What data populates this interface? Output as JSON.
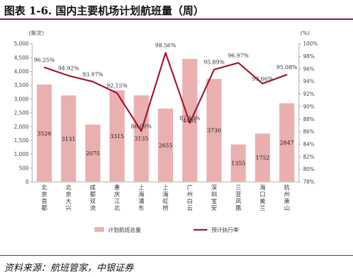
{
  "figure": {
    "title": "图表 1-6. 国内主要机场计划航班量（周）",
    "source": "资料来源：航班管家，中银证券"
  },
  "colors": {
    "bar": "#eab0b0",
    "line": "#a3122d",
    "rule": "#8b1a2e"
  },
  "chart_data": {
    "type": "bar",
    "categories": [
      "北京首都",
      "北京大兴",
      "成都双流",
      "重庆江北",
      "上海浦东",
      "上海虹桥",
      "广州白云",
      "深圳宝安",
      "三亚凤凰",
      "海口美兰",
      "杭州萧山"
    ],
    "series": [
      {
        "name": "计划航班总量",
        "type": "bar",
        "axis": "left",
        "values": [
          3526,
          3131,
          2075,
          3315,
          3135,
          2655,
          4451,
          3730,
          1355,
          1752,
          2847
        ],
        "labels": [
          "3526",
          "3131",
          "2075",
          "3315",
          "3135",
          "2655",
          "4451",
          "3730",
          "1355",
          "1752",
          "2847"
        ]
      },
      {
        "name": "预计执行率",
        "type": "line",
        "axis": "right",
        "values": [
          96.25,
          94.92,
          93.97,
          92.15,
          86.09,
          98.56,
          87.4,
          95.89,
          96.97,
          93.66,
          95.08
        ],
        "labels": [
          "96.25%",
          "94.92%",
          "93.97%",
          "92.15%",
          "86.09%",
          "98.56%",
          "87.40%",
          "95.89%",
          "96.97%",
          "93.66%",
          "95.08%"
        ]
      }
    ],
    "y_left": {
      "unit": "(架次)",
      "min": 0,
      "max": 5000,
      "step": 500,
      "ticks": [
        "0",
        "500",
        "1,000",
        "1,500",
        "2,000",
        "2,500",
        "3,000",
        "3,500",
        "4,000",
        "4,500",
        "5,000"
      ]
    },
    "y_right": {
      "unit": "(%)",
      "min": 78,
      "max": 100,
      "step": 2,
      "ticks": [
        "78%",
        "80%",
        "82%",
        "84%",
        "86%",
        "88%",
        "90%",
        "92%",
        "94%",
        "96%",
        "98%",
        "100%"
      ]
    },
    "grid": false,
    "legend": {
      "position": "bottom",
      "entries": [
        "计划航班总量",
        "预计执行率"
      ]
    }
  }
}
